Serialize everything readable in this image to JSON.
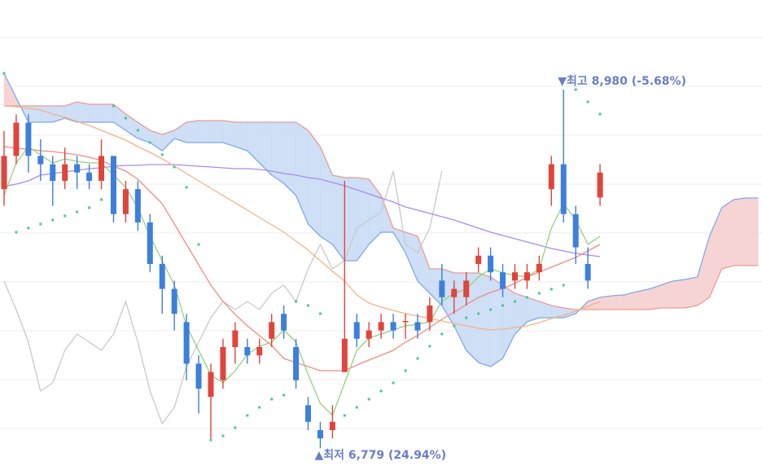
{
  "chart_data": {
    "type": "candlestick",
    "ylim": [
      6670,
      9530
    ],
    "yticks": [
      6900,
      7200,
      7500,
      7800,
      8100,
      8400,
      8700,
      9000,
      9300
    ],
    "grid": true,
    "up_color": "#e0443c",
    "down_color": "#3d7fdc",
    "open": [
      8369,
      8573,
      8777,
      8573,
      8522,
      8420,
      8522,
      8471,
      8420,
      8573,
      8216,
      8369,
      8165,
      7910,
      7757,
      7553,
      7298,
      7094,
      7196,
      7400,
      7400,
      7349,
      7451,
      7604,
      7400,
      7043,
      6890,
      6890,
      7247,
      7553,
      7451,
      7502,
      7553,
      7553,
      7553,
      7553,
      7808,
      7706,
      7706,
      7910,
      7961,
      7859,
      7808,
      7808,
      7859,
      8369,
      8522,
      8216,
      7910,
      8318
    ],
    "high": [
      8726,
      8828,
      8828,
      8675,
      8573,
      8624,
      8573,
      8522,
      8675,
      8573,
      8420,
      8420,
      8216,
      7961,
      7808,
      7604,
      7349,
      7298,
      7451,
      7553,
      7451,
      7451,
      7604,
      7655,
      7451,
      7094,
      6941,
      7043,
      8420,
      7604,
      7553,
      7604,
      7604,
      7604,
      7604,
      7706,
      7910,
      7808,
      7859,
      8012,
      8012,
      7910,
      7910,
      7910,
      7961,
      8573,
      8980,
      8267,
      8012,
      8522
    ],
    "low": [
      8267,
      8522,
      8471,
      8420,
      8267,
      8369,
      8369,
      8369,
      8369,
      8165,
      8165,
      8114,
      7859,
      7604,
      7502,
      7196,
      6992,
      6839,
      7145,
      7298,
      7298,
      7298,
      7400,
      7451,
      7145,
      6890,
      6779,
      6839,
      7247,
      7400,
      7400,
      7451,
      7451,
      7451,
      7451,
      7502,
      7655,
      7604,
      7655,
      7859,
      7808,
      7706,
      7757,
      7757,
      7808,
      8267,
      8165,
      7910,
      7757,
      8267
    ],
    "close": [
      8573,
      8777,
      8573,
      8522,
      8420,
      8522,
      8471,
      8420,
      8573,
      8216,
      8369,
      8165,
      7910,
      7757,
      7604,
      7298,
      7145,
      7247,
      7400,
      7502,
      7349,
      7400,
      7553,
      7502,
      7196,
      6941,
      6839,
      6941,
      7451,
      7451,
      7502,
      7553,
      7502,
      7560,
      7502,
      7655,
      7706,
      7757,
      7808,
      7961,
      7859,
      7757,
      7859,
      7859,
      7910,
      8522,
      8216,
      8012,
      7808,
      8471
    ],
    "cloud": {
      "up_color": "#c9dcf6",
      "down_color": "#f7d0d0",
      "span_a_color": "#7fa8e8",
      "span_b_color": "#ec9a94",
      "span_a": [
        9080,
        8930,
        8780,
        8780,
        8780,
        8805,
        8780,
        8780,
        8780,
        8780,
        8730,
        8680,
        8655,
        8605,
        8680,
        8655,
        8655,
        8655,
        8655,
        8630,
        8605,
        8530,
        8455,
        8405,
        8330,
        8155,
        8080,
        8030,
        7930,
        7930,
        8030,
        8105,
        8105,
        7980,
        7805,
        7730,
        7655,
        7530,
        7380,
        7305,
        7280,
        7330,
        7480,
        7555,
        7580,
        7580,
        7580,
        7605,
        7680,
        7705,
        7715,
        7720,
        7740,
        7755,
        7780,
        7805,
        7815,
        7830,
        8080,
        8255,
        8305,
        8315,
        8315
      ],
      "span_b": [
        8880,
        8880,
        8880,
        8880,
        8880,
        8880,
        8905,
        8890,
        8890,
        8890,
        8830,
        8780,
        8730,
        8705,
        8730,
        8780,
        8790,
        8790,
        8790,
        8780,
        8780,
        8780,
        8780,
        8780,
        8780,
        8730,
        8630,
        8455,
        8440,
        8440,
        8430,
        8330,
        8130,
        8105,
        8080,
        7880,
        7880,
        7855,
        7855,
        7855,
        7830,
        7780,
        7730,
        7705,
        7680,
        7655,
        7640,
        7630,
        7630,
        7630,
        7630,
        7630,
        7630,
        7630,
        7640,
        7640,
        7640,
        7655,
        7705,
        7880,
        7900,
        7900,
        7900
      ]
    },
    "series": [
      {
        "color": "#c9c9c9",
        "values": [
          7805,
          7630,
          7430,
          7130,
          7180,
          7380,
          7480,
          7430,
          7380,
          7480,
          7680,
          7430,
          7130,
          6930,
          7030,
          7280,
          7430,
          7580,
          7680,
          7630,
          7680,
          7630,
          7730,
          7780,
          7680,
          7880,
          8030,
          7880,
          7930,
          8130,
          8180,
          8230,
          8480,
          8030,
          7980,
          8130,
          8480,
          null,
          null,
          null,
          null,
          null,
          null,
          null,
          null,
          null,
          null,
          null,
          null,
          null
        ]
      },
      {
        "color": "#a98cf0",
        "values": [
          8385,
          8400,
          8420,
          8455,
          8465,
          8475,
          8485,
          8495,
          8500,
          8510,
          8515,
          8515,
          8520,
          8520,
          8520,
          8515,
          8510,
          8505,
          8500,
          8495,
          8495,
          8490,
          8480,
          8465,
          8455,
          8440,
          8430,
          8410,
          8390,
          8365,
          8340,
          8315,
          8290,
          8260,
          8240,
          8220,
          8200,
          8180,
          8155,
          8130,
          8105,
          8085,
          8065,
          8045,
          8025,
          8005,
          7990,
          7975,
          7965,
          7955
        ]
      },
      {
        "color": "#f2b386",
        "values": [
          8880,
          8875,
          8865,
          8855,
          8830,
          8810,
          8785,
          8760,
          8730,
          8700,
          8670,
          8630,
          8595,
          8555,
          8510,
          8465,
          8420,
          8375,
          8330,
          8285,
          8240,
          8195,
          8150,
          8105,
          8050,
          7995,
          7930,
          7865,
          7805,
          7720,
          7670,
          7645,
          7625,
          7605,
          7590,
          7575,
          7560,
          7545,
          7530,
          7515,
          7505,
          7510,
          7520,
          7530,
          7550,
          7575,
          7595,
          7620,
          7650,
          7680
        ]
      },
      {
        "color": "#f08c82",
        "values": [
          8630,
          8620,
          8615,
          8605,
          8600,
          8590,
          8580,
          8565,
          8545,
          8510,
          8480,
          8430,
          8355,
          8280,
          8155,
          8030,
          7905,
          7780,
          7680,
          7600,
          7530,
          7470,
          7410,
          7330,
          7305,
          7280,
          7255,
          7255,
          7255,
          7290,
          7320,
          7350,
          7380,
          7430,
          7470,
          7520,
          7570,
          7615,
          7660,
          7705,
          7735,
          7760,
          7790,
          7830,
          7860,
          7890,
          7920,
          7950,
          7990,
          8030
        ]
      },
      {
        "color": "#93d17f",
        "values": [
          8330,
          8530,
          8630,
          8580,
          8530,
          8555,
          8540,
          8530,
          8530,
          8455,
          8380,
          8255,
          8080,
          7930,
          7780,
          7530,
          7380,
          7230,
          7180,
          7255,
          7355,
          7405,
          7430,
          7505,
          7430,
          7230,
          7055,
          6980,
          7180,
          7380,
          7455,
          7480,
          7505,
          7530,
          7540,
          7555,
          7680,
          7730,
          7755,
          7830,
          7880,
          7855,
          7840,
          7830,
          7880,
          8130,
          8280,
          8180,
          8030,
          8080
        ]
      }
    ],
    "sar": {
      "color": "#4cc887",
      "values": [
        9080,
        8105,
        8130,
        8155,
        8180,
        8205,
        8230,
        8255,
        8305,
        8880,
        8805,
        8730,
        8655,
        8580,
        8505,
        8380,
        8030,
        6830,
        6855,
        6905,
        6980,
        7030,
        7080,
        7105,
        7680,
        7655,
        7605,
        6930,
        6980,
        7030,
        7080,
        7130,
        7180,
        7255,
        7330,
        7405,
        7480,
        7530,
        7580,
        7605,
        7630,
        7655,
        7680,
        7705,
        7730,
        7755,
        7780,
        8980,
        8905,
        8830
      ]
    },
    "annotations": [
      {
        "label": "▼최고 8,980 (-5.68%)",
        "value": 8980,
        "color": "#6a7fc4"
      },
      {
        "label": "▲최저 6,779 (24.94%)",
        "value": 6779,
        "color": "#6a7fc4"
      }
    ]
  }
}
